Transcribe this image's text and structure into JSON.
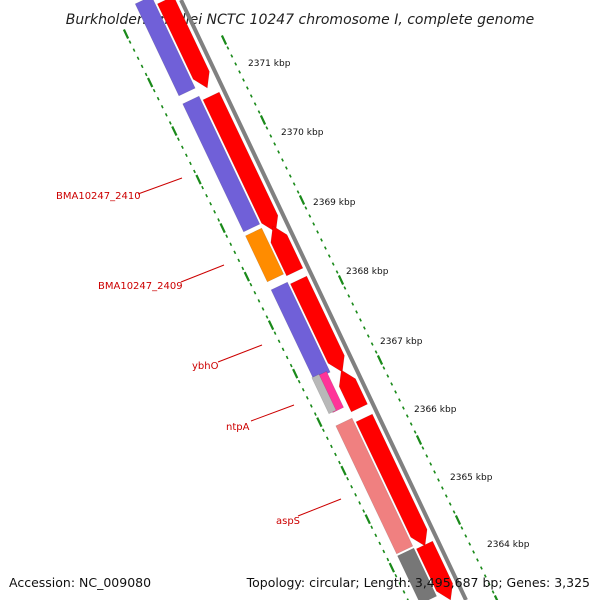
{
  "title": "Burkholderia mallei NCTC 10247 chromosome I, complete genome",
  "accession": "Accession: NC_009080",
  "summary": "Topology: circular; Length: 3,495,687 bp; Genes: 3,325",
  "colors": {
    "forward_cds": "#ff0000",
    "reverse_cds": "#7060d8",
    "orange_gene": "#ff8c00",
    "pink_gene": "#ff3399",
    "light_red_gene": "#f08080",
    "gray_gene": "#b8b8b8",
    "dark_gray_gene": "#777777",
    "backbone": "#808080",
    "tick_major": "#1a8a1a",
    "tick_minor": "#1a8a1a",
    "label": "#cc0000"
  },
  "kbp_ticks": [
    "2371 kbp",
    "2370 kbp",
    "2369 kbp",
    "2368 kbp",
    "2367 kbp",
    "2366 kbp",
    "2365 kbp",
    "2364 kbp"
  ],
  "gene_labels": [
    "BMA10247_2410",
    "BMA10247_2409",
    "ybhO",
    "ntpA",
    "aspS"
  ]
}
